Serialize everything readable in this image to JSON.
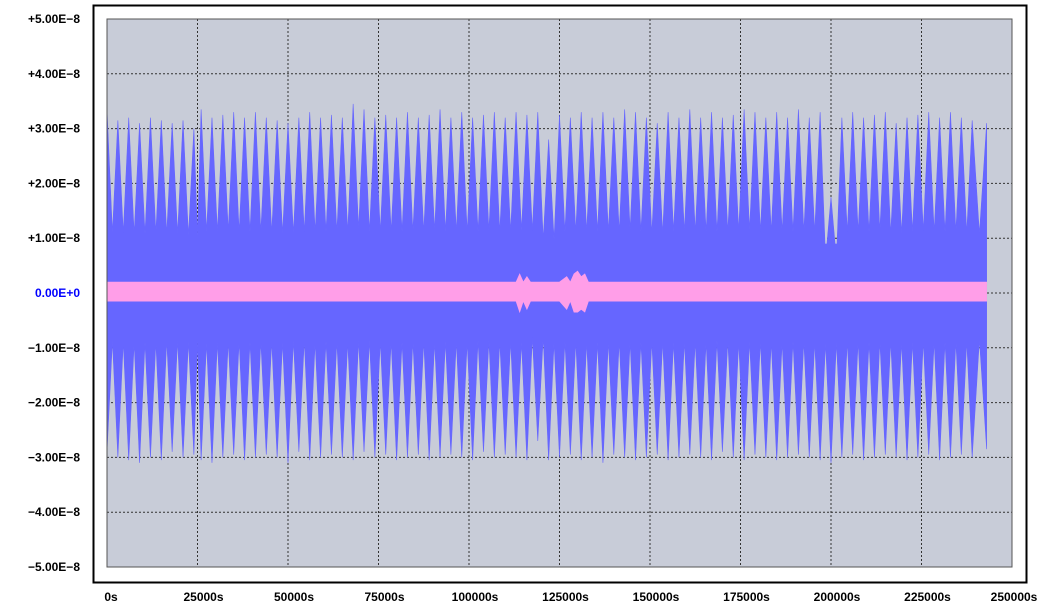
{
  "colors": {
    "plot_background": "#c8ccd8",
    "frame": "#000000",
    "gridline": "#333333",
    "series_main": "#6666ff",
    "series_baseline": "#2a2aa8",
    "series_secondary": "#ff9ee8",
    "zero_label": "#0000ff"
  },
  "chart_data": {
    "type": "area",
    "title": "",
    "xlabel": "",
    "ylabel": "",
    "grid": true,
    "legend": "none",
    "xlim": [
      0,
      250000
    ],
    "ylim": [
      -5e-08,
      5e-08
    ],
    "x_ticks": [
      "0s",
      "25000s",
      "50000s",
      "75000s",
      "100000s",
      "125000s",
      "150000s",
      "175000s",
      "200000s",
      "225000s",
      "250000s"
    ],
    "y_ticks": [
      "+5.00E−8",
      "+4.00E−8",
      "+3.00E−8",
      "+2.00E−8",
      "+1.00E−8",
      "0.00E+0",
      "−1.00E−8",
      "−2.00E−8",
      "−3.00E−8",
      "−4.00E−8",
      "−5.00E−8"
    ],
    "series": [
      {
        "x": [
          0,
          3000,
          6000,
          9000,
          12000,
          15000,
          18000,
          21000,
          24000,
          26000,
          29000,
          32000,
          35000,
          38000,
          41000,
          44000,
          47000,
          50000,
          53000,
          56000,
          59000,
          62000,
          65000,
          68000,
          71000,
          74000,
          77000,
          80000,
          83000,
          86000,
          89000,
          92000,
          95000,
          98000,
          101000,
          104000,
          107000,
          110000,
          113000,
          116000,
          119000,
          122000,
          125000,
          128000,
          131000,
          134000,
          137000,
          140000,
          143000,
          146000,
          149000,
          152000,
          155000,
          158000,
          161000,
          164000,
          167000,
          170000,
          173000,
          176000,
          179000,
          182000,
          185000,
          188000,
          191000,
          194000,
          197000,
          200000,
          203000,
          206000,
          209000,
          212000,
          215000,
          218000,
          221000,
          224000,
          227000,
          230000,
          233000,
          236000,
          239000,
          243000
        ],
        "upper": [
          3.35e-08,
          3.15e-08,
          3.2e-08,
          3.1e-08,
          3.2e-08,
          3.15e-08,
          3.1e-08,
          3.15e-08,
          3e-08,
          3.35e-08,
          3.2e-08,
          3.25e-08,
          3.3e-08,
          3.2e-08,
          3.3e-08,
          3.2e-08,
          3.15e-08,
          3.1e-08,
          3.2e-08,
          3.3e-08,
          3.2e-08,
          3.25e-08,
          3.2e-08,
          3.45e-08,
          3.35e-08,
          3.2e-08,
          3.25e-08,
          3.2e-08,
          3.3e-08,
          3.2e-08,
          3.25e-08,
          3.35e-08,
          3.2e-08,
          3.3e-08,
          3.2e-08,
          3.25e-08,
          3.3e-08,
          3.2e-08,
          3.3e-08,
          3.25e-08,
          3.3e-08,
          2.8e-08,
          3.25e-08,
          3.2e-08,
          3.3e-08,
          3.2e-08,
          3.3e-08,
          3.2e-08,
          3.35e-08,
          3.3e-08,
          3.2e-08,
          3.1e-08,
          3.3e-08,
          3.2e-08,
          3.35e-08,
          3.2e-08,
          3.3e-08,
          3.2e-08,
          3.25e-08,
          3.35e-08,
          3.3e-08,
          3.2e-08,
          3.3e-08,
          3.2e-08,
          3.35e-08,
          3.2e-08,
          3.3e-08,
          1.75e-08,
          3.2e-08,
          3.3e-08,
          3.2e-08,
          3.25e-08,
          3.3e-08,
          3.1e-08,
          3.2e-08,
          3.25e-08,
          3.3e-08,
          3.2e-08,
          3.3e-08,
          3.2e-08,
          3.15e-08,
          3.1e-08
        ],
        "lower": [
          -2.9e-08,
          -3e-08,
          -3.05e-08,
          -3.1e-08,
          -3e-08,
          -3.05e-08,
          -2.9e-08,
          -3e-08,
          -2.95e-08,
          -3.05e-08,
          -3.1e-08,
          -3e-08,
          -2.95e-08,
          -3.05e-08,
          -3e-08,
          -2.95e-08,
          -3e-08,
          -3.1e-08,
          -2.9e-08,
          -3.05e-08,
          -3e-08,
          -2.95e-08,
          -3e-08,
          -3.05e-08,
          -2.9e-08,
          -3e-08,
          -2.95e-08,
          -3.05e-08,
          -3e-08,
          -2.95e-08,
          -3.05e-08,
          -3e-08,
          -2.95e-08,
          -3e-08,
          -3.05e-08,
          -2.9e-08,
          -3e-08,
          -2.95e-08,
          -3e-08,
          -3.05e-08,
          -2.7e-08,
          -3.05e-08,
          -3e-08,
          -2.95e-08,
          -3.05e-08,
          -3e-08,
          -3.1e-08,
          -2.95e-08,
          -3e-08,
          -3.05e-08,
          -3e-08,
          -2.95e-08,
          -3.05e-08,
          -3e-08,
          -2.95e-08,
          -3e-08,
          -3.05e-08,
          -2.9e-08,
          -3e-08,
          -3.05e-08,
          -2.95e-08,
          -3e-08,
          -3.05e-08,
          -3e-08,
          -2.95e-08,
          -3e-08,
          -3.05e-08,
          -3.1e-08,
          -3e-08,
          -2.95e-08,
          -3.05e-08,
          -3e-08,
          -2.95e-08,
          -3e-08,
          -3.05e-08,
          -3e-08,
          -2.95e-08,
          -3.05e-08,
          -3e-08,
          -2.95e-08,
          -3e-08,
          -2.85e-08
        ],
        "baseline": 1.4e-09
      },
      {
        "x": [
          0,
          50000,
          100000,
          113000,
          114000,
          115000,
          116000,
          117000,
          125000,
          127000,
          128000,
          129000,
          130000,
          131000,
          132000,
          133000,
          140000,
          200000,
          243000
        ],
        "upper": [
          2e-09,
          2e-09,
          2e-09,
          2e-09,
          3.5e-09,
          2e-09,
          3e-09,
          2e-09,
          2e-09,
          3e-09,
          2e-09,
          3.5e-09,
          4e-09,
          3e-09,
          3.5e-09,
          2e-09,
          2e-09,
          2e-09,
          2e-09
        ],
        "lower": [
          -1.5e-09,
          -1.5e-09,
          -1.5e-09,
          -1.5e-09,
          -3.5e-09,
          -1.5e-09,
          -3e-09,
          -1.5e-09,
          -1.5e-09,
          -3e-09,
          -1.5e-09,
          -3.5e-09,
          -3.5e-09,
          -3e-09,
          -3.5e-09,
          -1.5e-09,
          -1.5e-09,
          -1.5e-09,
          -1.5e-09
        ]
      }
    ]
  }
}
